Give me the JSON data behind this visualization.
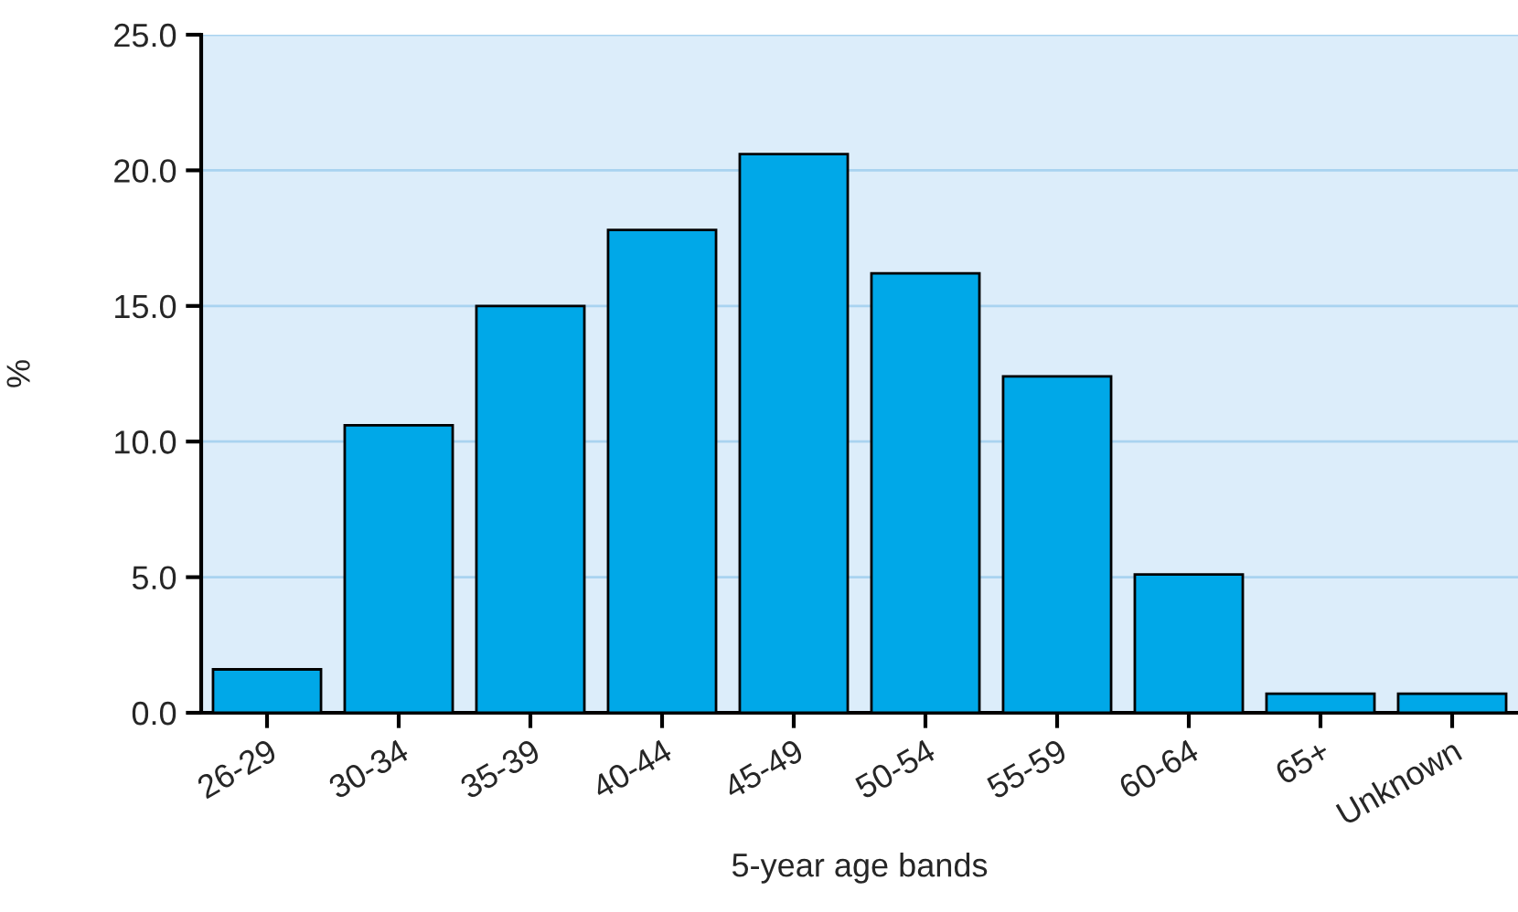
{
  "chart_data": {
    "type": "bar",
    "xlabel": "5-year age bands",
    "ylabel": "%",
    "categories": [
      "26-29",
      "30-34",
      "35-39",
      "40-44",
      "45-49",
      "50-54",
      "55-59",
      "60-64",
      "65+",
      "Unknown"
    ],
    "values": [
      1.6,
      10.6,
      15.0,
      17.8,
      20.6,
      16.2,
      12.4,
      5.1,
      0.7,
      0.7
    ],
    "color": "#00a8e8",
    "ylim": [
      0,
      25
    ],
    "yticks": [
      {
        "value": 0,
        "label": "0.0"
      },
      {
        "value": 5,
        "label": "5.0"
      },
      {
        "value": 10,
        "label": "10.0"
      },
      {
        "value": 15,
        "label": "15.0"
      },
      {
        "value": 20,
        "label": "20.0"
      },
      {
        "value": 25,
        "label": "25.0"
      }
    ],
    "grid": "y"
  }
}
